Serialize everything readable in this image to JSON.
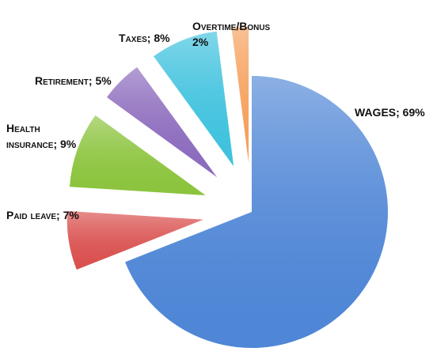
{
  "chart_data": {
    "type": "pie",
    "exploded": true,
    "categories": [
      "WAGES; 69%",
      "Paid leave; 7%",
      "Health insurance; 9%",
      "Retirement; 5%",
      "Taxes; 8%",
      "Overtime/Bonus 2%"
    ],
    "values": [
      69,
      7,
      9,
      5,
      8,
      2
    ],
    "colors": [
      "#4f86d6",
      "#d9514f",
      "#8cc43e",
      "#8c6bbd",
      "#3fc2de",
      "#f5a05c"
    ]
  }
}
